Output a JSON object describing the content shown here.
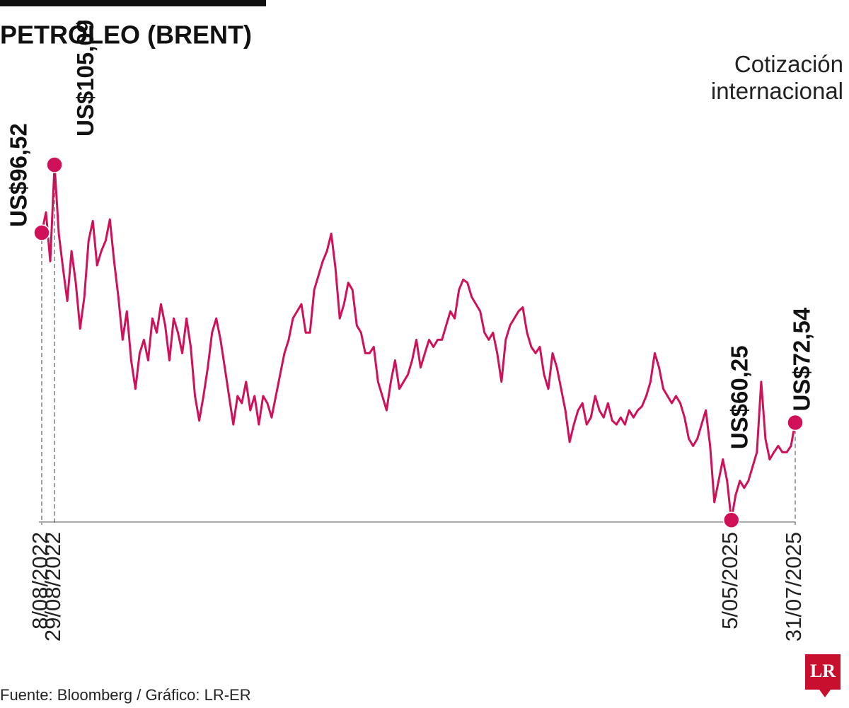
{
  "chart_data": {
    "type": "line",
    "title": "PETRÓLEO (BRENT)",
    "subtitle": "Cotización internacional",
    "source": "Fuente: Bloomberg / Gráfico: LR-ER",
    "logo": "LR",
    "color": "#d1105a",
    "ylim": [
      60,
      110
    ],
    "categories": [
      "8/08/2022",
      null,
      null,
      "29/08/2022",
      null,
      null,
      null,
      null,
      null,
      null,
      null,
      null,
      null,
      null,
      null,
      null,
      null,
      null,
      null,
      null,
      null,
      null,
      null,
      null,
      null,
      null,
      null,
      null,
      null,
      null,
      null,
      null,
      null,
      null,
      null,
      null,
      null,
      null,
      null,
      null,
      null,
      null,
      null,
      null,
      null,
      null,
      null,
      null,
      null,
      null,
      null,
      null,
      null,
      null,
      null,
      null,
      null,
      null,
      null,
      null,
      null,
      null,
      null,
      null,
      null,
      null,
      null,
      null,
      null,
      null,
      null,
      null,
      null,
      null,
      null,
      null,
      null,
      null,
      null,
      null,
      null,
      null,
      null,
      null,
      null,
      null,
      null,
      null,
      null,
      null,
      null,
      null,
      null,
      null,
      null,
      null,
      null,
      null,
      null,
      null,
      null,
      null,
      null,
      null,
      null,
      null,
      null,
      null,
      null,
      null,
      null,
      null,
      null,
      null,
      null,
      null,
      null,
      null,
      null,
      null,
      null,
      null,
      null,
      null,
      null,
      null,
      null,
      null,
      null,
      null,
      null,
      null,
      null,
      null,
      null,
      null,
      null,
      null,
      null,
      null,
      null,
      null,
      null,
      null,
      null,
      null,
      null,
      null,
      null,
      null,
      null,
      null,
      null,
      null,
      null,
      null,
      null,
      null,
      null,
      null,
      null,
      null,
      "5/05/2025",
      null,
      null,
      null,
      null,
      null,
      null,
      null,
      null,
      null,
      null,
      null,
      null,
      null,
      null,
      "31/07/2025"
    ],
    "values": [
      96.52,
      99.1,
      92.9,
      105.09,
      96.4,
      92.0,
      87.9,
      94.2,
      90.2,
      84.4,
      88.4,
      95.5,
      98.0,
      92.4,
      94.2,
      95.5,
      98.2,
      92.9,
      88.4,
      83.0,
      86.6,
      80.4,
      76.8,
      81.3,
      83.0,
      80.4,
      85.7,
      83.9,
      87.5,
      84.8,
      80.4,
      85.7,
      83.9,
      81.3,
      85.7,
      82.1,
      75.9,
      72.8,
      75.9,
      79.5,
      83.9,
      85.7,
      83.0,
      79.5,
      75.9,
      72.3,
      75.9,
      75.0,
      77.7,
      74.1,
      75.9,
      72.3,
      75.9,
      75.0,
      73.2,
      75.9,
      78.6,
      81.3,
      83.0,
      85.7,
      86.6,
      87.5,
      83.9,
      83.9,
      89.3,
      91.1,
      92.9,
      94.2,
      96.4,
      92.0,
      85.7,
      87.5,
      90.2,
      89.3,
      84.8,
      83.9,
      81.3,
      81.3,
      82.1,
      77.7,
      75.9,
      74.1,
      77.7,
      80.4,
      76.8,
      77.7,
      78.6,
      80.4,
      83.0,
      79.5,
      81.3,
      83.0,
      82.1,
      83.0,
      83.0,
      84.8,
      86.6,
      85.7,
      89.3,
      90.6,
      90.2,
      88.4,
      87.5,
      86.6,
      83.9,
      83.0,
      83.9,
      81.3,
      77.7,
      83.0,
      84.8,
      85.7,
      86.6,
      87.1,
      83.9,
      82.1,
      81.3,
      82.1,
      78.6,
      76.8,
      81.3,
      79.5,
      76.8,
      74.1,
      70.1,
      72.3,
      74.1,
      75.0,
      72.3,
      73.2,
      75.9,
      74.1,
      73.2,
      75.0,
      72.8,
      72.3,
      73.2,
      72.3,
      74.1,
      73.2,
      74.1,
      74.6,
      75.9,
      77.7,
      81.3,
      79.5,
      76.8,
      75.9,
      75.0,
      75.9,
      75.0,
      73.2,
      70.5,
      69.6,
      70.5,
      72.3,
      74.1,
      69.6,
      62.5,
      65.2,
      67.9,
      65.2,
      60.25,
      63.4,
      65.2,
      64.3,
      65.2,
      67.0,
      68.8,
      77.7,
      70.5,
      67.9,
      68.8,
      69.6,
      68.8,
      68.8,
      69.6,
      72.54
    ],
    "value_labels": [
      "US$96,52",
      null,
      null,
      "US$105,09",
      null,
      null,
      null,
      null,
      null,
      null,
      null,
      null,
      null,
      null,
      null,
      null,
      null,
      null,
      null,
      null,
      null,
      null,
      null,
      null,
      null,
      null,
      null,
      null,
      null,
      null,
      null,
      null,
      null,
      null,
      null,
      null,
      null,
      null,
      null,
      null,
      null,
      null,
      null,
      null,
      null,
      null,
      null,
      null,
      null,
      null,
      null,
      null,
      null,
      null,
      null,
      null,
      null,
      null,
      null,
      null,
      null,
      null,
      null,
      null,
      null,
      null,
      null,
      null,
      null,
      null,
      null,
      null,
      null,
      null,
      null,
      null,
      null,
      null,
      null,
      null,
      null,
      null,
      null,
      null,
      null,
      null,
      null,
      null,
      null,
      null,
      null,
      null,
      null,
      null,
      null,
      null,
      null,
      null,
      null,
      null,
      null,
      null,
      null,
      null,
      null,
      null,
      null,
      null,
      null,
      null,
      null,
      null,
      null,
      null,
      null,
      null,
      null,
      null,
      null,
      null,
      null,
      null,
      null,
      null,
      null,
      null,
      null,
      null,
      null,
      null,
      null,
      null,
      null,
      null,
      null,
      null,
      null,
      null,
      null,
      null,
      null,
      null,
      null,
      null,
      null,
      null,
      null,
      null,
      null,
      null,
      null,
      null,
      null,
      null,
      null,
      null,
      null,
      null,
      null,
      null,
      null,
      null,
      "US$60,25",
      null,
      null,
      null,
      null,
      null,
      null,
      null,
      null,
      null,
      null,
      null,
      null,
      null,
      null,
      "US$72,54"
    ]
  }
}
